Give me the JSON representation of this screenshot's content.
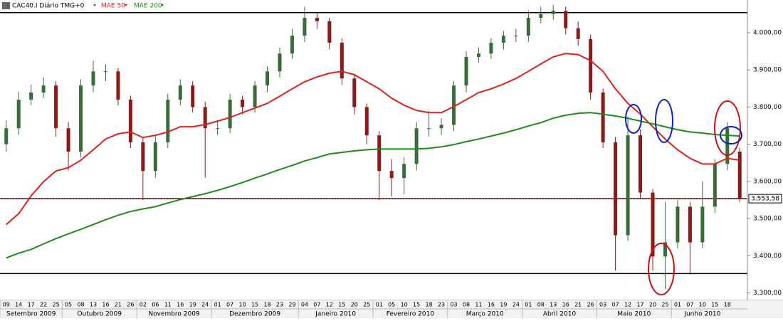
{
  "chart_data": {
    "type": "candlestick",
    "legend": {
      "instrument": "CAC40.I Diário TMG+0",
      "ma50": "MAE 50",
      "ma200": "MAE 200"
    },
    "months": [
      {
        "name": "Setembro 2009",
        "days": [
          "09",
          "14",
          "17",
          "22",
          "25"
        ]
      },
      {
        "name": "Outubro 2009",
        "days": [
          "05",
          "08",
          "13",
          "16",
          "21",
          "26"
        ]
      },
      {
        "name": "Novembro 2009",
        "days": [
          "02",
          "06",
          "11",
          "16",
          "19",
          "24"
        ]
      },
      {
        "name": "Dezembro 2009",
        "days": [
          "01",
          "07",
          "10",
          "15",
          "18",
          "23",
          "29"
        ]
      },
      {
        "name": "Janeiro 2010",
        "days": [
          "04",
          "07",
          "12",
          "15",
          "20",
          "25"
        ]
      },
      {
        "name": "Fevereiro 2010",
        "days": [
          "01",
          "05",
          "10",
          "15",
          "18",
          "23"
        ]
      },
      {
        "name": "Março 2010",
        "days": [
          "03",
          "08",
          "11",
          "16",
          "19",
          "24"
        ]
      },
      {
        "name": "Abril 2010",
        "days": [
          "01",
          "08",
          "13",
          "16",
          "21",
          "26"
        ]
      },
      {
        "name": "Maio 2010",
        "days": [
          "03",
          "07",
          "12",
          "17",
          "20",
          "25"
        ]
      },
      {
        "name": "Junho 2010",
        "days": [
          "01",
          "07",
          "10",
          "15",
          "18"
        ]
      }
    ],
    "open": [
      3700,
      3743,
      3820,
      3839,
      3858,
      3743,
      3680,
      3858,
      3896,
      3896,
      3820,
      3705,
      3628,
      3705,
      3820,
      3858,
      3800,
      3743,
      3743,
      3820,
      3800,
      3858,
      3896,
      3944,
      3992,
      4040,
      4031,
      3973,
      3877,
      3800,
      3724,
      3628,
      3609,
      3647,
      3743,
      3743,
      3752,
      3858,
      3935,
      3944,
      3973,
      3992,
      3992,
      4040,
      4050,
      4059,
      4012,
      3983,
      3839,
      3705,
      3455,
      3724,
      3570,
      3398,
      3436,
      3532,
      3436,
      3532,
      3647,
      3680
    ],
    "high": [
      3765,
      3840,
      3860,
      3880,
      3870,
      3760,
      3875,
      3925,
      3915,
      3905,
      3830,
      3720,
      3725,
      3835,
      3875,
      3870,
      3815,
      3765,
      3835,
      3830,
      3870,
      3910,
      3960,
      4010,
      4070,
      4055,
      4040,
      3985,
      3890,
      3810,
      3735,
      3660,
      3665,
      3760,
      3790,
      3770,
      3870,
      3950,
      3960,
      3985,
      4005,
      4010,
      4060,
      4070,
      4075,
      4070,
      4030,
      3995,
      3850,
      3720,
      3775,
      3740,
      3580,
      3545,
      3550,
      3545,
      3600,
      3660,
      3760,
      3690
    ],
    "low": [
      3680,
      3725,
      3805,
      3825,
      3720,
      3630,
      3665,
      3840,
      3870,
      3805,
      3690,
      3550,
      3610,
      3690,
      3805,
      3785,
      3610,
      3725,
      3730,
      3780,
      3785,
      3840,
      3880,
      3930,
      3975,
      4010,
      3955,
      3860,
      3780,
      3700,
      3550,
      3560,
      3565,
      3630,
      3720,
      3725,
      3735,
      3840,
      3920,
      3930,
      3955,
      3975,
      3975,
      4025,
      4035,
      3995,
      3965,
      3820,
      3690,
      3360,
      3440,
      3555,
      3360,
      3310,
      3420,
      3350,
      3420,
      3515,
      3630,
      3545
    ],
    "close": [
      3743,
      3820,
      3839,
      3858,
      3743,
      3680,
      3858,
      3896,
      3896,
      3820,
      3705,
      3628,
      3705,
      3820,
      3858,
      3800,
      3743,
      3743,
      3820,
      3800,
      3858,
      3896,
      3944,
      3992,
      4040,
      4031,
      3973,
      3877,
      3800,
      3724,
      3628,
      3609,
      3647,
      3743,
      3743,
      3752,
      3858,
      3935,
      3944,
      3973,
      3992,
      3992,
      4040,
      4050,
      4059,
      4012,
      3983,
      3839,
      3705,
      3455,
      3724,
      3570,
      3398,
      3436,
      3532,
      3436,
      3532,
      3647,
      3743,
      3553.58
    ],
    "up_color": "#3a6b3a",
    "down_color": "#8b1a1a",
    "series": [
      {
        "name": "MAE 50",
        "color": "#e02020",
        "values": [
          3484,
          3513,
          3561,
          3599,
          3628,
          3637,
          3657,
          3685,
          3714,
          3728,
          3733,
          3718,
          3724,
          3733,
          3747,
          3747,
          3753,
          3762,
          3772,
          3785,
          3797,
          3810,
          3829,
          3849,
          3868,
          3881,
          3891,
          3896,
          3887,
          3868,
          3849,
          3824,
          3805,
          3791,
          3785,
          3785,
          3801,
          3820,
          3839,
          3849,
          3862,
          3877,
          3896,
          3916,
          3935,
          3944,
          3941,
          3925,
          3896,
          3849,
          3810,
          3781,
          3747,
          3714,
          3685,
          3662,
          3647,
          3647,
          3662,
          3657
        ]
      },
      {
        "name": "MAE 200",
        "color": "#1e8a1e",
        "values": [
          3394,
          3407,
          3417,
          3432,
          3446,
          3459,
          3471,
          3484,
          3497,
          3509,
          3519,
          3526,
          3532,
          3542,
          3551,
          3559,
          3567,
          3576,
          3586,
          3597,
          3609,
          3620,
          3632,
          3643,
          3655,
          3664,
          3674,
          3678,
          3682,
          3685,
          3687,
          3687,
          3687,
          3687,
          3689,
          3693,
          3699,
          3707,
          3714,
          3722,
          3730,
          3739,
          3749,
          3758,
          3770,
          3778,
          3783,
          3785,
          3781,
          3776,
          3770,
          3762,
          3755,
          3747,
          3739,
          3733,
          3730,
          3726,
          3724,
          3722
        ]
      }
    ],
    "hlines": [
      {
        "value": 4054,
        "color": "#000000"
      },
      {
        "value": 3553.58,
        "color": "#000000"
      },
      {
        "value": 3352,
        "color": "#000000"
      }
    ],
    "last_price": {
      "value": 3553.58,
      "label": "3.553,58"
    },
    "ylim": [
      3280,
      4088
    ],
    "yticks": [
      {
        "value": 3300,
        "label": "3.300,00"
      },
      {
        "value": 3400,
        "label": "3.400,00"
      },
      {
        "value": 3500,
        "label": "3.500,00"
      },
      {
        "value": 3600,
        "label": "3.600,00"
      },
      {
        "value": 3700,
        "label": "3.700,00"
      },
      {
        "value": 3800,
        "label": "3.800,00"
      },
      {
        "value": 3900,
        "label": "3.900,00"
      },
      {
        "value": 4000,
        "label": "4.000,00"
      }
    ]
  }
}
